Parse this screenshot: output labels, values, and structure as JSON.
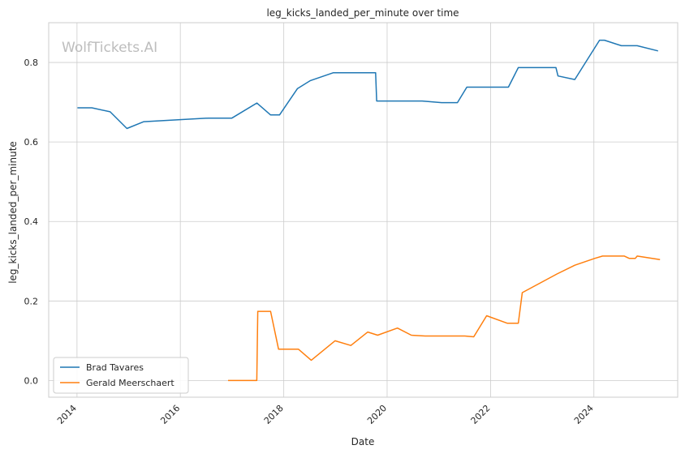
{
  "chart_data": {
    "type": "line",
    "title": "leg_kicks_landed_per_minute over time",
    "xlabel": "Date",
    "ylabel": "leg_kicks_landed_per_minute",
    "watermark": "WolfTickets.AI",
    "grid": true,
    "legend_position": "lower-left",
    "xlim": [
      "2013-06-15",
      "2025-08-15"
    ],
    "ylim": [
      -0.042,
      0.9
    ],
    "x_ticks": [
      "2014",
      "2016",
      "2018",
      "2020",
      "2022",
      "2024"
    ],
    "y_ticks": [
      "0.0",
      "0.2",
      "0.4",
      "0.6",
      "0.8"
    ],
    "series": [
      {
        "name": "Brad Tavares",
        "color": "#1f77b4",
        "points": [
          [
            "2014-01-04",
            0.686
          ],
          [
            "2014-04-16",
            0.686
          ],
          [
            "2014-08-23",
            0.676
          ],
          [
            "2014-12-20",
            0.634
          ],
          [
            "2015-04-18",
            0.651
          ],
          [
            "2016-07-16",
            0.66
          ],
          [
            "2016-12-30",
            0.66
          ],
          [
            "2017-06-25",
            0.698
          ],
          [
            "2017-09-30",
            0.668
          ],
          [
            "2017-12-02",
            0.668
          ],
          [
            "2018-04-07",
            0.734
          ],
          [
            "2018-07-06",
            0.754
          ],
          [
            "2018-12-15",
            0.774
          ],
          [
            "2019-10-12",
            0.774
          ],
          [
            "2019-10-19",
            0.703
          ],
          [
            "2020-09-05",
            0.703
          ],
          [
            "2021-01-20",
            0.699
          ],
          [
            "2021-05-12",
            0.699
          ],
          [
            "2021-07-17",
            0.738
          ],
          [
            "2022-05-07",
            0.738
          ],
          [
            "2022-07-16",
            0.787
          ],
          [
            "2023-04-08",
            0.787
          ],
          [
            "2023-04-22",
            0.766
          ],
          [
            "2023-08-19",
            0.757
          ],
          [
            "2024-02-10",
            0.856
          ],
          [
            "2024-03-16",
            0.856
          ],
          [
            "2024-07-13",
            0.842
          ],
          [
            "2024-11-02",
            0.842
          ],
          [
            "2025-03-29",
            0.829
          ]
        ]
      },
      {
        "name": "Gerald Meerschaert",
        "color": "#ff7f0e",
        "points": [
          [
            "2016-12-03",
            0.0
          ],
          [
            "2017-06-24",
            0.0
          ],
          [
            "2017-07-01",
            0.174
          ],
          [
            "2017-09-30",
            0.174
          ],
          [
            "2017-11-25",
            0.079
          ],
          [
            "2018-04-14",
            0.079
          ],
          [
            "2018-07-14",
            0.051
          ],
          [
            "2018-12-29",
            0.1
          ],
          [
            "2019-04-20",
            0.088
          ],
          [
            "2019-08-17",
            0.122
          ],
          [
            "2019-10-26",
            0.114
          ],
          [
            "2020-03-14",
            0.132
          ],
          [
            "2020-06-20",
            0.114
          ],
          [
            "2020-09-26",
            0.112
          ],
          [
            "2021-07-03",
            0.112
          ],
          [
            "2021-09-04",
            0.11
          ],
          [
            "2021-12-04",
            0.163
          ],
          [
            "2022-04-30",
            0.144
          ],
          [
            "2022-07-16",
            0.144
          ],
          [
            "2022-08-13",
            0.221
          ],
          [
            "2023-04-15",
            0.268
          ],
          [
            "2023-08-19",
            0.29
          ],
          [
            "2024-01-06",
            0.307
          ],
          [
            "2024-03-02",
            0.313
          ],
          [
            "2024-08-03",
            0.313
          ],
          [
            "2024-09-07",
            0.307
          ],
          [
            "2024-10-19",
            0.307
          ],
          [
            "2024-11-02",
            0.313
          ],
          [
            "2025-04-12",
            0.304
          ]
        ]
      }
    ]
  }
}
